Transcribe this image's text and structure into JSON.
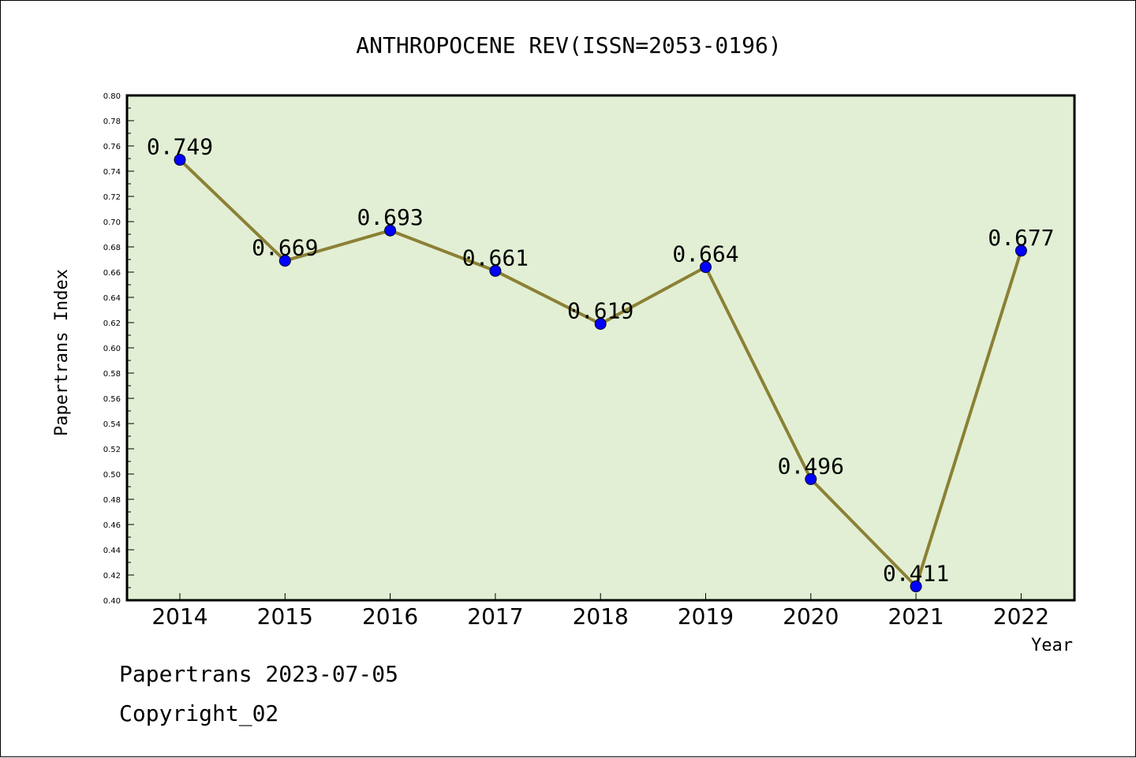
{
  "chart_data": {
    "type": "line",
    "title": "ANTHROPOCENE REV(ISSN=2053-0196)",
    "xlabel": "Year",
    "ylabel": "Papertrans Index",
    "categories": [
      "2014",
      "2015",
      "2016",
      "2017",
      "2018",
      "2019",
      "2020",
      "2021",
      "2022"
    ],
    "values": [
      0.749,
      0.669,
      0.693,
      0.661,
      0.619,
      0.664,
      0.496,
      0.411,
      0.677
    ],
    "data_labels": [
      "0.749",
      "0.669",
      "0.693",
      "0.661",
      "0.619",
      "0.664",
      "0.496",
      "0.411",
      "0.677"
    ],
    "yticks": [
      "0.40",
      "0.42",
      "0.44",
      "0.46",
      "0.48",
      "0.50",
      "0.52",
      "0.54",
      "0.56",
      "0.58",
      "0.60",
      "0.62",
      "0.64",
      "0.66",
      "0.68",
      "0.70",
      "0.72",
      "0.74",
      "0.76",
      "0.78",
      "0.80"
    ],
    "ylim": [
      0.4,
      0.8
    ],
    "grid": false,
    "colors": {
      "plot_background": "#e2efd4",
      "line": "#8b8035",
      "marker": "#0000ff"
    }
  },
  "footer": {
    "line1": "Papertrans 2023-07-05",
    "line2": "Copyright_02"
  }
}
